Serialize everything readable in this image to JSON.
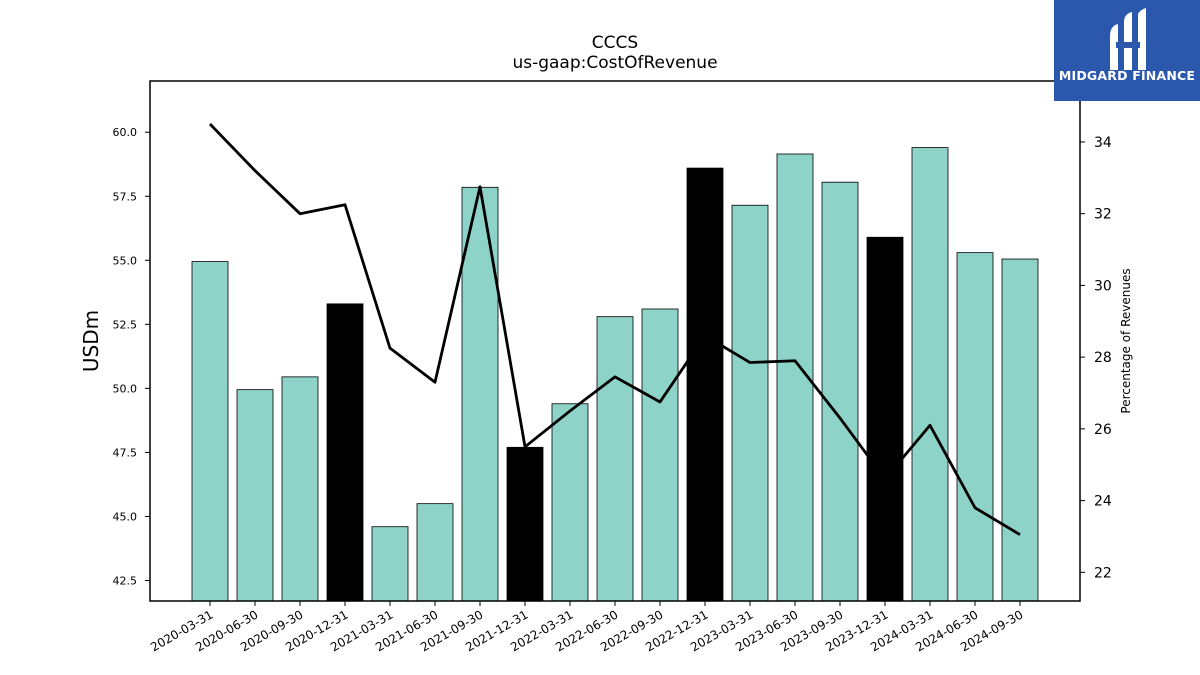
{
  "chart_data": {
    "type": "bar",
    "title": "CCCS",
    "subtitle": "us-gaap:CostOfRevenue",
    "ylabel": "USDm",
    "y2label": "Percentage of Revenues",
    "categories": [
      "2020-03-31",
      "2020-06-30",
      "2020-09-30",
      "2020-12-31",
      "2021-03-31",
      "2021-06-30",
      "2021-09-30",
      "2021-12-31",
      "2022-03-31",
      "2022-06-30",
      "2022-09-30",
      "2022-12-31",
      "2023-03-31",
      "2023-06-30",
      "2023-09-30",
      "2023-12-31",
      "2024-03-31",
      "2024-06-30",
      "2024-09-30"
    ],
    "series": [
      {
        "type": "bar",
        "axis": "left",
        "values": [
          54.95,
          49.95,
          50.45,
          53.3,
          44.6,
          45.5,
          57.85,
          47.7,
          49.4,
          52.8,
          53.1,
          58.6,
          57.15,
          59.15,
          58.05,
          55.9,
          59.4,
          55.3,
          55.05
        ],
        "colors": [
          "#8dd3c7",
          "#8dd3c7",
          "#8dd3c7",
          "#000000",
          "#8dd3c7",
          "#8dd3c7",
          "#8dd3c7",
          "#000000",
          "#8dd3c7",
          "#8dd3c7",
          "#8dd3c7",
          "#000000",
          "#8dd3c7",
          "#8dd3c7",
          "#8dd3c7",
          "#000000",
          "#8dd3c7",
          "#8dd3c7",
          "#8dd3c7"
        ]
      },
      {
        "type": "line",
        "axis": "right",
        "color": "#000000",
        "values": [
          34.5,
          33.2,
          32.0,
          32.25,
          28.25,
          27.3,
          32.75,
          25.5,
          26.5,
          27.45,
          26.75,
          28.6,
          27.85,
          27.9,
          26.3,
          24.6,
          26.1,
          23.8,
          23.05
        ]
      }
    ],
    "ylim": [
      41.7,
      62.0
    ],
    "yticks": [
      "42.5",
      "45.0",
      "47.5",
      "50.0",
      "52.5",
      "55.0",
      "57.5",
      "60.0"
    ],
    "y2lim": [
      21.2,
      35.7
    ],
    "y2ticks": [
      "22",
      "24",
      "26",
      "28",
      "30",
      "32",
      "34"
    ],
    "grid": false,
    "legend": "none"
  },
  "logo": {
    "text": "MIDGARD FINANCE",
    "background": "#2b58ad"
  }
}
